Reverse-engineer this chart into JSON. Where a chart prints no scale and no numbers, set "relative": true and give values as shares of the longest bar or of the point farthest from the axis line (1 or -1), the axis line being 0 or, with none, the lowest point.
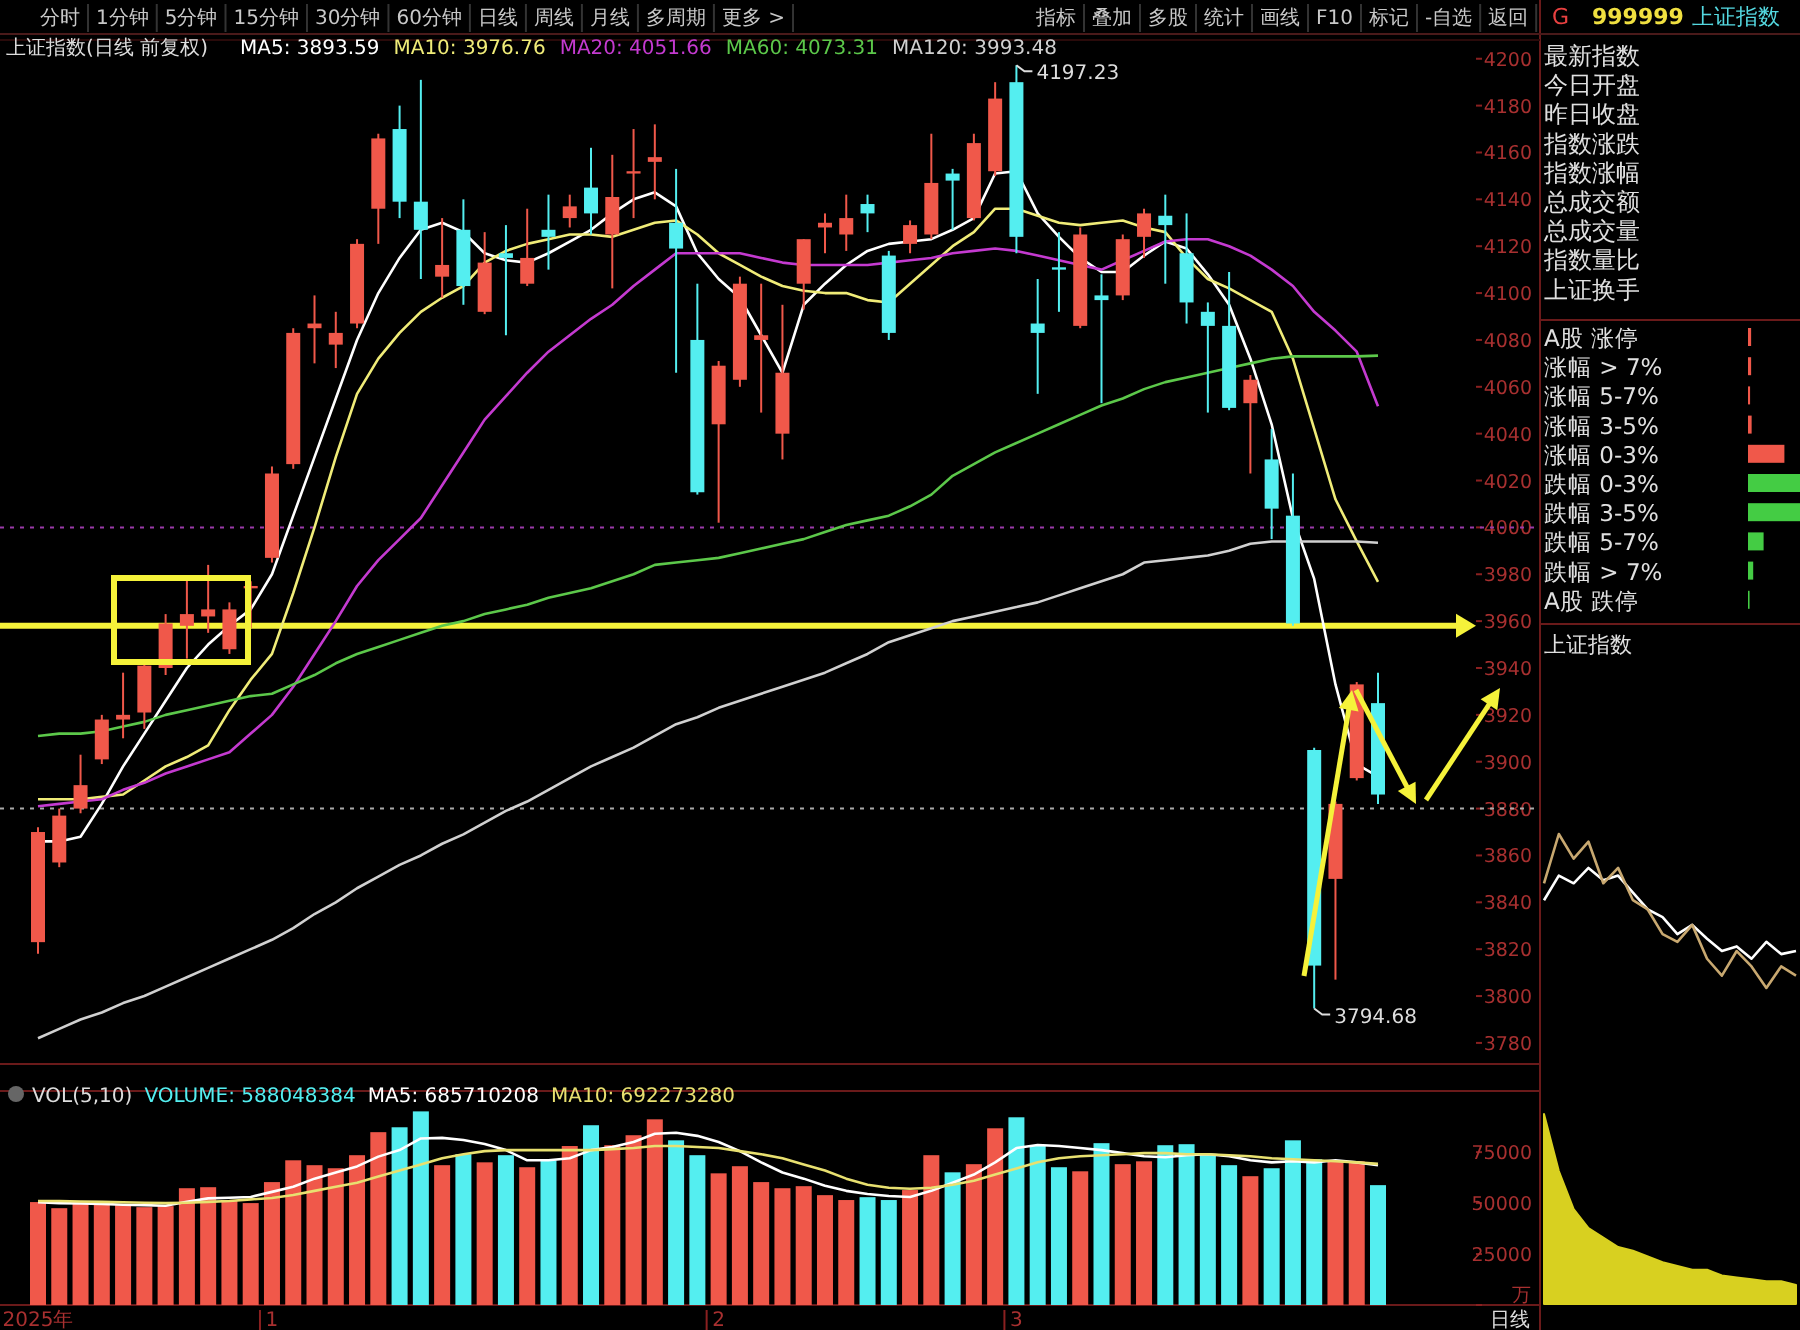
{
  "chart_data": [
    {
      "type": "candlestick",
      "title": "上证指数(日线 前复权)",
      "categories": [
        null,
        null,
        null,
        null,
        null,
        null,
        null,
        null,
        null,
        null,
        null,
        null,
        null,
        null,
        null,
        null,
        null,
        null,
        null,
        null,
        null,
        null,
        null,
        null,
        null,
        null,
        null,
        null,
        null,
        null,
        null,
        null,
        null,
        null,
        null,
        null,
        null,
        null,
        null,
        null,
        null,
        null,
        null,
        null,
        null,
        null,
        null,
        null,
        null,
        null,
        null,
        null,
        null,
        null,
        null,
        null,
        null,
        null,
        null,
        null,
        null,
        null,
        null,
        null
      ],
      "ohlc": [
        [
          3823,
          3872,
          3818,
          3870
        ],
        [
          3857,
          3880,
          3855,
          3877
        ],
        [
          3880,
          3903,
          3878,
          3890
        ],
        [
          3901,
          3920,
          3899,
          3918
        ],
        [
          3918,
          3938,
          3910,
          3920
        ],
        [
          3921,
          3942,
          3914,
          3941
        ],
        [
          3940,
          3963,
          3937,
          3959
        ],
        [
          3958,
          3978,
          3944,
          3963
        ],
        [
          3962,
          3984,
          3955,
          3965
        ],
        [
          3948,
          3968,
          3946,
          3965
        ],
        [
          3974,
          3977,
          3957,
          3975
        ],
        [
          3987,
          4026,
          3985,
          4023
        ],
        [
          4027,
          4085,
          4025,
          4083
        ],
        [
          4085,
          4099,
          4070,
          4087
        ],
        [
          4078,
          4092,
          4068,
          4083
        ],
        [
          4087,
          4123,
          4085,
          4121
        ],
        [
          4136,
          4168,
          4121,
          4166
        ],
        [
          4170,
          4180,
          4132,
          4139
        ],
        [
          4139,
          4191,
          4106,
          4127
        ],
        [
          4107,
          4132,
          4098,
          4112
        ],
        [
          4127,
          4140,
          4095,
          4103
        ],
        [
          4092,
          4126,
          4091,
          4113
        ],
        [
          4117,
          4129,
          4082,
          4115
        ],
        [
          4104,
          4136,
          4103,
          4115
        ],
        [
          4127,
          4142,
          4110,
          4124
        ],
        [
          4132,
          4142,
          4128,
          4137
        ],
        [
          4145,
          4162,
          4125,
          4134
        ],
        [
          4125,
          4159,
          4102,
          4141
        ],
        [
          4151,
          4170,
          4132,
          4152
        ],
        [
          4156,
          4172,
          4140,
          4158
        ],
        [
          4130,
          4153,
          4066,
          4119
        ],
        [
          4080,
          4104,
          4014,
          4015
        ],
        [
          4044,
          4071,
          4002,
          4069
        ],
        [
          4063,
          4107,
          4060,
          4104
        ],
        [
          4080,
          4104,
          4049,
          4082
        ],
        [
          4040,
          4095,
          4029,
          4066
        ],
        [
          4104,
          4123,
          4093,
          4123
        ],
        [
          4128,
          4134,
          4117,
          4130
        ],
        [
          4125,
          4142,
          4118,
          4132
        ],
        [
          4138,
          4142,
          4126,
          4134
        ],
        [
          4116,
          4118,
          4080,
          4083
        ],
        [
          4121,
          4131,
          4117,
          4129
        ],
        [
          4125,
          4168,
          4123,
          4147
        ],
        [
          4151,
          4153,
          4127,
          4148
        ],
        [
          4132,
          4168,
          4131,
          4164
        ],
        [
          4152,
          4190,
          4150,
          4183
        ],
        [
          4190,
          4197.23,
          4117,
          4124
        ],
        [
          4087,
          4106,
          4057,
          4083
        ],
        [
          4111,
          4126,
          4092,
          4110
        ],
        [
          4086,
          4128,
          4085,
          4125
        ],
        [
          4099,
          4108,
          4053,
          4097
        ],
        [
          4099,
          4125,
          4097,
          4123
        ],
        [
          4124,
          4136,
          4115,
          4134
        ],
        [
          4133,
          4142,
          4104,
          4129
        ],
        [
          4117,
          4134,
          4087,
          4096
        ],
        [
          4092,
          4096,
          4049,
          4086
        ],
        [
          4086,
          4109,
          4050,
          4051
        ],
        [
          4053,
          4065,
          4023,
          4063
        ],
        [
          4029,
          4042,
          3995,
          4008
        ],
        [
          4005,
          4023,
          3958,
          3959
        ],
        [
          3905,
          3906,
          3794.68,
          3813
        ],
        [
          3850,
          3883,
          3807,
          3882
        ],
        [
          3893,
          3934,
          3892,
          3933
        ],
        [
          3925,
          3938,
          3882,
          3886
        ]
      ],
      "colors": [
        "#f0584a",
        "#f0584a",
        "#f0584a",
        "#f0584a",
        "#f0584a",
        "#f0584a",
        "#f0584a",
        "#f0584a",
        "#f0584a",
        "#f0584a",
        "#f0584a",
        "#f0584a",
        "#f0584a",
        "#f0584a",
        "#f0584a",
        "#f0584a",
        "#f0584a",
        "#54eef0",
        "#54eef0",
        "#f0584a",
        "#54eef0",
        "#f0584a",
        "#54eef0",
        "#f0584a",
        "#54eef0",
        "#f0584a",
        "#54eef0",
        "#f0584a",
        "#f0584a",
        "#f0584a",
        "#54eef0",
        "#54eef0",
        "#f0584a",
        "#f0584a",
        "#f0584a",
        "#f0584a",
        "#f0584a",
        "#f0584a",
        "#f0584a",
        "#54eef0",
        "#54eef0",
        "#f0584a",
        "#f0584a",
        "#54eef0",
        "#f0584a",
        "#f0584a",
        "#54eef0",
        "#54eef0",
        "#54eef0",
        "#f0584a",
        "#54eef0",
        "#f0584a",
        "#f0584a",
        "#54eef0",
        "#54eef0",
        "#54eef0",
        "#54eef0",
        "#f0584a",
        "#54eef0",
        "#54eef0",
        "#54eef0",
        "#f0584a",
        "#f0584a",
        "#54eef0"
      ],
      "series": [
        {
          "name": "MA5: 3893.59",
          "type": "line",
          "color": "#ffffff",
          "values": [
            3866,
            3866,
            3868,
            3882,
            3898,
            3912,
            3926,
            3940,
            3950,
            3958,
            3965,
            3980,
            4005,
            4030,
            4055,
            4080,
            4100,
            4115,
            4127,
            4130,
            4126,
            4117,
            4114,
            4113,
            4117,
            4122,
            4127,
            4134,
            4140,
            4143,
            4137,
            4117,
            4106,
            4098,
            4082,
            4066,
            4095,
            4104,
            4112,
            4118,
            4121,
            4122,
            4123,
            4127,
            4132,
            4151,
            4152,
            4134,
            4124,
            4115,
            4109,
            4109,
            4116,
            4122,
            4119,
            4108,
            4095,
            4072,
            4044,
            4004,
            3978,
            3933,
            3899,
            3893.59
          ]
        },
        {
          "name": "MA10: 3976.76",
          "type": "line",
          "color": "#f0ec78",
          "values": [
            3884,
            3884,
            3884,
            3885,
            3886,
            3892,
            3898,
            3902,
            3907,
            3922,
            3935,
            3946,
            3972,
            4000,
            4030,
            4057,
            4072,
            4083,
            4092,
            4098,
            4103,
            4113,
            4118,
            4121,
            4123,
            4125,
            4125,
            4124,
            4127,
            4130,
            4131,
            4125,
            4117,
            4112,
            4107,
            4103,
            4101,
            4100,
            4100,
            4097,
            4096,
            4104,
            4112,
            4120,
            4126,
            4136,
            4136,
            4133,
            4130,
            4129,
            4130,
            4131,
            4128,
            4126,
            4115,
            4106,
            4102,
            4097,
            4092,
            4072,
            4042,
            4012,
            3994,
            3976.76
          ]
        },
        {
          "name": "MA20: 4051.66",
          "type": "line",
          "color": "#c43ad0",
          "values": [
            3881,
            3882,
            3883,
            3884,
            3888,
            3891,
            3895,
            3898,
            3901,
            3904,
            3912,
            3920,
            3932,
            3946,
            3960,
            3975,
            3986,
            3995,
            4004,
            4018,
            4032,
            4046,
            4056,
            4066,
            4075,
            4082,
            4089,
            4095,
            4103,
            4110,
            4117,
            4117,
            4117,
            4117,
            4115,
            4113,
            4112,
            4112,
            4112,
            4112,
            4113,
            4114,
            4115,
            4117,
            4118,
            4119,
            4118,
            4116,
            4114,
            4112,
            4110,
            4114,
            4118,
            4122,
            4123,
            4123,
            4120,
            4116,
            4110,
            4103,
            4092,
            4084,
            4075,
            4051.66
          ]
        },
        {
          "name": "MA60: 4073.31",
          "type": "line",
          "color": "#5cc84a",
          "values": [
            3911,
            3912,
            3912,
            3913,
            3915,
            3917,
            3920,
            3922,
            3924,
            3926,
            3928,
            3929,
            3933,
            3937,
            3942,
            3946,
            3949,
            3952,
            3955,
            3958,
            3960,
            3963,
            3965,
            3967,
            3970,
            3972,
            3974,
            3977,
            3980,
            3984,
            3985,
            3986,
            3987,
            3989,
            3991,
            3993,
            3995,
            3998,
            4001,
            4003,
            4005,
            4009,
            4014,
            4022,
            4027,
            4032,
            4036,
            4040,
            4044,
            4048,
            4052,
            4055,
            4059,
            4062,
            4064,
            4066,
            4068,
            4070,
            4072,
            4073,
            4073,
            4073,
            4073,
            4073.31
          ]
        },
        {
          "name": "MA120: 3993.48",
          "type": "line",
          "color": "#d0d0d0",
          "values": [
            3782,
            3786,
            3790,
            3793,
            3797,
            3800,
            3804,
            3808,
            3812,
            3816,
            3820,
            3824,
            3829,
            3835,
            3840,
            3846,
            3851,
            3856,
            3860,
            3865,
            3869,
            3874,
            3879,
            3883,
            3888,
            3893,
            3898,
            3902,
            3906,
            3911,
            3916,
            3919,
            3923,
            3926,
            3929,
            3932,
            3935,
            3938,
            3942,
            3946,
            3951,
            3954,
            3957,
            3960,
            3962,
            3964,
            3966,
            3968,
            3971,
            3974,
            3977,
            3980,
            3985,
            3986,
            3987,
            3988,
            3990,
            3993,
            3994,
            3994,
            3994,
            3994,
            3994,
            3993.48
          ]
        }
      ],
      "ylim": [
        3771,
        4208
      ],
      "yticks": [
        3780,
        3800,
        3820,
        3840,
        3860,
        3880,
        3900,
        3920,
        3940,
        3960,
        3980,
        4000,
        4020,
        4040,
        4060,
        4080,
        4100,
        4120,
        4140,
        4160,
        4180,
        4200
      ],
      "tick_labels": "y",
      "ref_lines": [
        {
          "axis": "y",
          "value": 4000,
          "color": "#9a3aa8",
          "line_style": "dotted"
        },
        {
          "axis": "y",
          "value": 3880,
          "color": "#aaaaaa",
          "line_style": "dotted"
        },
        {
          "axis": "y",
          "value": 3958,
          "color": "#f5f23a",
          "line_style": "solid"
        }
      ],
      "annotations": [
        "4197.23",
        "3794.68"
      ]
    },
    {
      "type": "bar",
      "title": "VOL(5,10)",
      "categories": [
        "2025年",
        null,
        null,
        null,
        null,
        null,
        null,
        null,
        null,
        null,
        null,
        "1",
        null,
        null,
        null,
        null,
        null,
        null,
        null,
        null,
        null,
        null,
        null,
        null,
        null,
        null,
        null,
        null,
        null,
        null,
        null,
        null,
        "2",
        null,
        null,
        null,
        null,
        null,
        null,
        null,
        null,
        null,
        null,
        null,
        null,
        null,
        "3",
        null,
        null,
        null,
        null,
        null,
        null,
        null,
        null,
        null,
        null,
        null,
        null,
        null,
        null,
        null,
        null,
        null
      ],
      "series": [
        {
          "name": "VOLUME: 588048384",
          "colors": [
            "#f0584a",
            "#f0584a",
            "#f0584a",
            "#f0584a",
            "#f0584a",
            "#f0584a",
            "#f0584a",
            "#f0584a",
            "#f0584a",
            "#f0584a",
            "#f0584a",
            "#f0584a",
            "#f0584a",
            "#f0584a",
            "#f0584a",
            "#f0584a",
            "#f0584a",
            "#54eef0",
            "#54eef0",
            "#f0584a",
            "#54eef0",
            "#f0584a",
            "#54eef0",
            "#f0584a",
            "#54eef0",
            "#f0584a",
            "#54eef0",
            "#f0584a",
            "#f0584a",
            "#f0584a",
            "#54eef0",
            "#54eef0",
            "#f0584a",
            "#f0584a",
            "#f0584a",
            "#f0584a",
            "#f0584a",
            "#f0584a",
            "#f0584a",
            "#54eef0",
            "#54eef0",
            "#f0584a",
            "#f0584a",
            "#54eef0",
            "#f0584a",
            "#f0584a",
            "#54eef0",
            "#54eef0",
            "#54eef0",
            "#f0584a",
            "#54eef0",
            "#f0584a",
            "#f0584a",
            "#54eef0",
            "#54eef0",
            "#54eef0",
            "#54eef0",
            "#f0584a",
            "#54eef0",
            "#54eef0",
            "#54eef0",
            "#f0584a",
            "#f0584a",
            "#54eef0"
          ],
          "values": [
            50500,
            47500,
            50500,
            50500,
            49000,
            48000,
            48500,
            57300,
            57800,
            51500,
            50000,
            60300,
            71000,
            68600,
            67100,
            73500,
            84800,
            87200,
            95000,
            68600,
            74000,
            70000,
            73500,
            67600,
            71000,
            78000,
            88200,
            78400,
            83300,
            91100,
            80800,
            73500,
            64600,
            68100,
            60300,
            57300,
            58300,
            53900,
            51500,
            52900,
            51500,
            56400,
            73500,
            65100,
            69100,
            86700,
            92100,
            78400,
            67600,
            65600,
            79400,
            69100,
            70500,
            78400,
            78900,
            73500,
            68600,
            63200,
            67100,
            80800,
            71500,
            71000,
            70500,
            58805
          ]
        },
        {
          "name": "MA5: 685710208",
          "type": "line",
          "color": "#ffffff",
          "values": [
            50500,
            50000,
            49800,
            49600,
            49200,
            49000,
            48700,
            50700,
            52300,
            52600,
            53000,
            55500,
            58000,
            62000,
            65000,
            68000,
            72800,
            76000,
            81700,
            82000,
            81000,
            79000,
            76000,
            71000,
            71000,
            72000,
            76000,
            77500,
            80000,
            84000,
            84500,
            83000,
            80000,
            75500,
            70000,
            65000,
            62000,
            58500,
            56000,
            54500,
            53500,
            53000,
            56000,
            60000,
            64000,
            70000,
            77000,
            78500,
            78000,
            77000,
            76000,
            74500,
            73000,
            72500,
            73500,
            74000,
            73000,
            71000,
            70000,
            70500,
            70000,
            71000,
            70000,
            68571
          ]
        },
        {
          "name": "MA10: 692273280",
          "type": "line",
          "color": "#e8e070",
          "values": [
            51000,
            51000,
            50800,
            50600,
            50400,
            50200,
            50000,
            50200,
            50600,
            51000,
            51800,
            52500,
            54000,
            56000,
            58000,
            60000,
            63000,
            66000,
            69000,
            72000,
            74000,
            75500,
            76000,
            76000,
            76000,
            76000,
            76000,
            76500,
            77000,
            78000,
            78000,
            77500,
            77000,
            75500,
            74000,
            72000,
            69000,
            66000,
            62000,
            59000,
            57500,
            57000,
            57500,
            59000,
            61000,
            64000,
            67000,
            70000,
            72000,
            73000,
            73500,
            74000,
            74500,
            74500,
            74000,
            74000,
            73500,
            73000,
            72000,
            71500,
            71000,
            70500,
            70000,
            69227
          ]
        }
      ],
      "ylim": [
        0,
        105000
      ],
      "yticks": [
        {
          "value": 0,
          "label": "万"
        },
        25000,
        50000,
        75000
      ],
      "annotations": [
        "日线"
      ]
    },
    {
      "type": "other",
      "annotations": [
        "分时",
        "1分钟",
        "5分钟",
        "15分钟",
        "30分钟",
        "60分钟",
        "日线",
        "周线",
        "月线",
        "多周期",
        "更多 >"
      ]
    },
    {
      "type": "other",
      "annotations": [
        "指标",
        "叠加",
        "多股",
        "统计",
        "画线",
        "F10",
        "标记",
        "-自选",
        "返回"
      ]
    },
    {
      "type": "other",
      "title": "999999",
      "subtitle": "上证指数",
      "annotations": [
        "G",
        "最新指数",
        "今日开盘",
        "昨日收盘",
        "指数涨跌",
        "指数涨幅",
        "总成交额",
        "总成交量",
        "指数量比",
        "上证换手"
      ]
    },
    {
      "type": "bar",
      "orientation": "horizontal",
      "relative": true,
      "categories": [
        "A股 涨停",
        "涨幅 > 7%",
        "涨幅 5-7%",
        "涨幅 3-5%",
        "涨幅 0-3%",
        "跌幅 0-3%",
        "跌幅 3-5%",
        "跌幅 5-7%",
        "跌幅 > 7%",
        "A股 跌停"
      ],
      "values": [
        0.06,
        0.06,
        0.04,
        0.07,
        0.7,
        1,
        1,
        0.3,
        0.1,
        0.03
      ],
      "colors": [
        "#f0584a",
        "#f0584a",
        "#f0584a",
        "#f0584a",
        "#f0584a",
        "#44cc44",
        "#44cc44",
        "#44cc44",
        "#44cc44",
        "#44cc44"
      ]
    },
    {
      "type": "line",
      "title": "上证指数",
      "relative": true,
      "categories": [
        null,
        null,
        null,
        null,
        null,
        null,
        null,
        null,
        null,
        null,
        null,
        null,
        null,
        null,
        null,
        null,
        null,
        null
      ],
      "series": [
        {
          "color": "#ffffff",
          "values": [
            0.57,
            0.73,
            0.68,
            0.78,
            0.7,
            0.73,
            0.62,
            0.51,
            0.46,
            0.35,
            0.41,
            0.32,
            0.24,
            0.27,
            0.19,
            0.3,
            0.22,
            0.24
          ]
        },
        {
          "color": "#c8a870",
          "values": [
            0.68,
            1,
            0.84,
            0.95,
            0.68,
            0.78,
            0.57,
            0.51,
            0.35,
            0.3,
            0.41,
            0.19,
            0.08,
            0.24,
            0.14,
            0,
            0.14,
            0.08
          ]
        }
      ]
    },
    {
      "type": "area",
      "relative": true,
      "categories": [
        null,
        null,
        null,
        null,
        null,
        null,
        null,
        null,
        null,
        null,
        null,
        null,
        null,
        null,
        null,
        null,
        null,
        null
      ],
      "values": [
        1,
        0.7,
        0.5,
        0.4,
        0.35,
        0.3,
        0.28,
        0.25,
        0.22,
        0.2,
        0.18,
        0.18,
        0.15,
        0.14,
        0.13,
        0.12,
        0.12,
        0.1
      ],
      "color": "#d8d020"
    }
  ]
}
